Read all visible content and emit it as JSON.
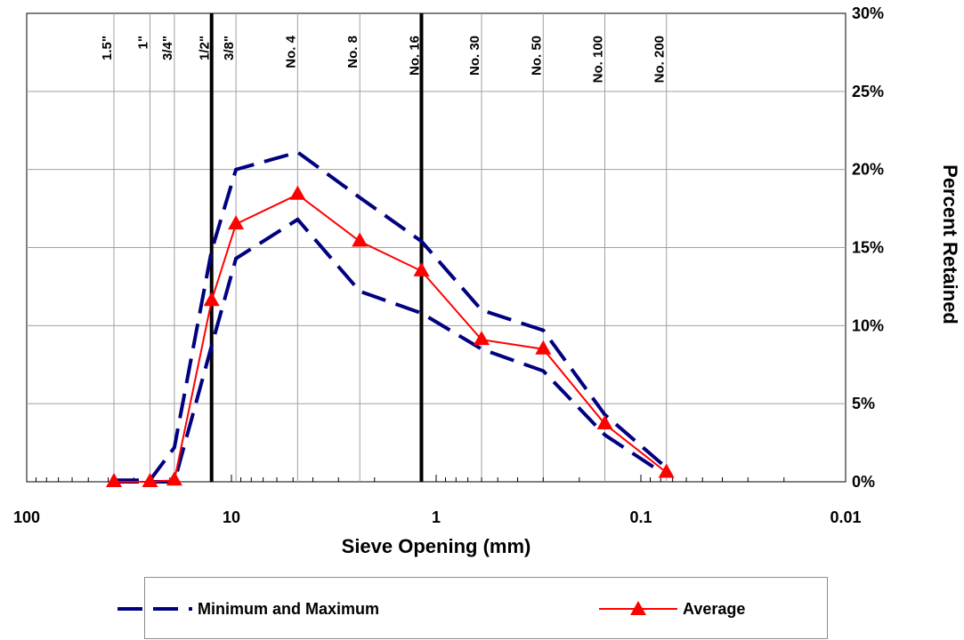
{
  "chart_data": {
    "type": "line",
    "x_scale": "log",
    "x_reversed": true,
    "xlabel": "Sieve Opening (mm)",
    "ylabel": "Percent Retained",
    "xlim": [
      100,
      0.01
    ],
    "ylim": [
      0,
      30
    ],
    "x_ticks": [
      {
        "value": 100,
        "label": "100"
      },
      {
        "value": 10,
        "label": "10"
      },
      {
        "value": 1,
        "label": "1"
      },
      {
        "value": 0.1,
        "label": "0.1"
      },
      {
        "value": 0.01,
        "label": "0.01"
      }
    ],
    "y_ticks": [
      {
        "value": 0,
        "label": "0%"
      },
      {
        "value": 5,
        "label": "5%"
      },
      {
        "value": 10,
        "label": "10%"
      },
      {
        "value": 15,
        "label": "15%"
      },
      {
        "value": 20,
        "label": "20%"
      },
      {
        "value": 25,
        "label": "25%"
      },
      {
        "value": 30,
        "label": "30%"
      }
    ],
    "sieves": [
      {
        "label": "1.5\"",
        "x": 37.5
      },
      {
        "label": "1\"",
        "x": 25
      },
      {
        "label": "3/4\"",
        "x": 19
      },
      {
        "label": "1/2\"",
        "x": 12.5
      },
      {
        "label": "3/8\"",
        "x": 9.5
      },
      {
        "label": "No. 4",
        "x": 4.75
      },
      {
        "label": "No. 8",
        "x": 2.36
      },
      {
        "label": "No. 16",
        "x": 1.18
      },
      {
        "label": "No. 30",
        "x": 0.6
      },
      {
        "label": "No. 50",
        "x": 0.3
      },
      {
        "label": "No. 100",
        "x": 0.15
      },
      {
        "label": "No. 200",
        "x": 0.075
      }
    ],
    "reference_lines": [
      12.5,
      1.18
    ],
    "series": [
      {
        "name": "Minimum and Maximum",
        "role": "max",
        "color": "#000080",
        "style": "dashed",
        "x": [
          37.5,
          25,
          19,
          12.5,
          9.5,
          4.75,
          2.36,
          1.18,
          0.6,
          0.3,
          0.15,
          0.075
        ],
        "y": [
          0.1,
          0.1,
          2.2,
          14.8,
          20.0,
          21.1,
          18.2,
          15.4,
          11.0,
          9.7,
          4.3,
          0.9
        ]
      },
      {
        "name": "Minimum and Maximum",
        "role": "min",
        "color": "#000080",
        "style": "dashed",
        "x": [
          37.5,
          25,
          19,
          12.5,
          9.5,
          4.75,
          2.36,
          1.18,
          0.6,
          0.3,
          0.15,
          0.075
        ],
        "y": [
          0.0,
          0.0,
          0.0,
          8.7,
          14.3,
          16.8,
          12.2,
          10.8,
          8.5,
          7.1,
          3.0,
          0.4
        ]
      },
      {
        "name": "Average",
        "role": "avg",
        "color": "#ff0000",
        "style": "solid",
        "marker": "triangle",
        "x": [
          37.5,
          25,
          19,
          12.5,
          9.5,
          4.75,
          2.36,
          1.18,
          0.6,
          0.3,
          0.15,
          0.075
        ],
        "y": [
          0.0,
          0.0,
          0.1,
          11.6,
          16.5,
          18.4,
          15.4,
          13.5,
          9.1,
          8.5,
          3.7,
          0.6
        ]
      }
    ],
    "legend": {
      "position": "bottom",
      "entries": [
        "Minimum and Maximum",
        "Average"
      ]
    }
  }
}
